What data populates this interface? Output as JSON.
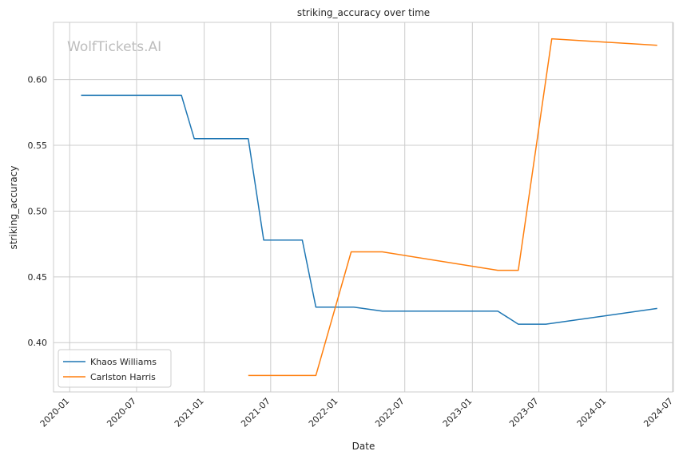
{
  "watermark": "WolfTickets.AI",
  "chart_data": {
    "type": "line",
    "title": "striking_accuracy over time",
    "xlabel": "Date",
    "ylabel": "striking_accuracy",
    "xlim": [
      "2019-11-18",
      "2024-06-29"
    ],
    "ylim": [
      0.3625,
      0.6435
    ],
    "x_ticks": [
      "2020-01",
      "2020-07",
      "2021-01",
      "2021-07",
      "2022-01",
      "2022-07",
      "2023-01",
      "2023-07",
      "2024-01",
      "2024-07"
    ],
    "y_ticks": [
      "0.40",
      "0.45",
      "0.50",
      "0.55",
      "0.60"
    ],
    "y_tick_values": [
      0.4,
      0.45,
      0.5,
      0.55,
      0.6
    ],
    "grid": true,
    "legend_position": "lower-left",
    "series": [
      {
        "name": "Khaos Williams",
        "color": "#1f77b4",
        "x": [
          "2020-02-01",
          "2020-10-31",
          "2020-12-05",
          "2021-05-01",
          "2021-06-12",
          "2021-09-25",
          "2021-11-01",
          "2022-02-12",
          "2022-05-01",
          "2023-03-11",
          "2023-05-06",
          "2023-07-20",
          "2024-05-18"
        ],
        "y": [
          0.588,
          0.588,
          0.555,
          0.555,
          0.478,
          0.478,
          0.427,
          0.427,
          0.424,
          0.424,
          0.414,
          0.414,
          0.426
        ]
      },
      {
        "name": "Carlston Harris",
        "color": "#ff7f0e",
        "x": [
          "2021-05-01",
          "2021-11-01",
          "2022-02-05",
          "2022-05-01",
          "2023-03-11",
          "2023-05-06",
          "2023-08-05",
          "2024-05-18"
        ],
        "y": [
          0.375,
          0.375,
          0.469,
          0.469,
          0.455,
          0.455,
          0.631,
          0.626
        ]
      }
    ]
  }
}
